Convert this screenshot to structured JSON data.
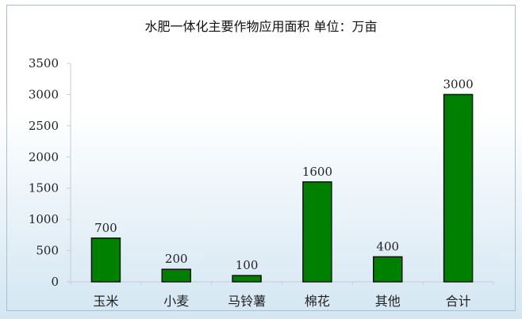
{
  "chart_data": {
    "type": "bar",
    "title": "水肥一体化主要作物应用面积  单位：万亩",
    "categories": [
      "玉米",
      "小麦",
      "马铃薯",
      "棉花",
      "其他",
      "合计"
    ],
    "values": [
      700,
      200,
      100,
      1600,
      400,
      3000
    ],
    "data_labels": [
      "700",
      "200",
      "100",
      "1600",
      "400",
      "3000"
    ],
    "ylim": [
      0,
      3500
    ],
    "yticks": [
      0,
      500,
      1000,
      1500,
      2000,
      2500,
      3000,
      3500
    ],
    "ytick_labels": [
      "0",
      "500",
      "1000",
      "1500",
      "2000",
      "2500",
      "3000",
      "3500"
    ],
    "grid": false,
    "bar_color": "#008000",
    "bar_edge_color": "#111111"
  }
}
